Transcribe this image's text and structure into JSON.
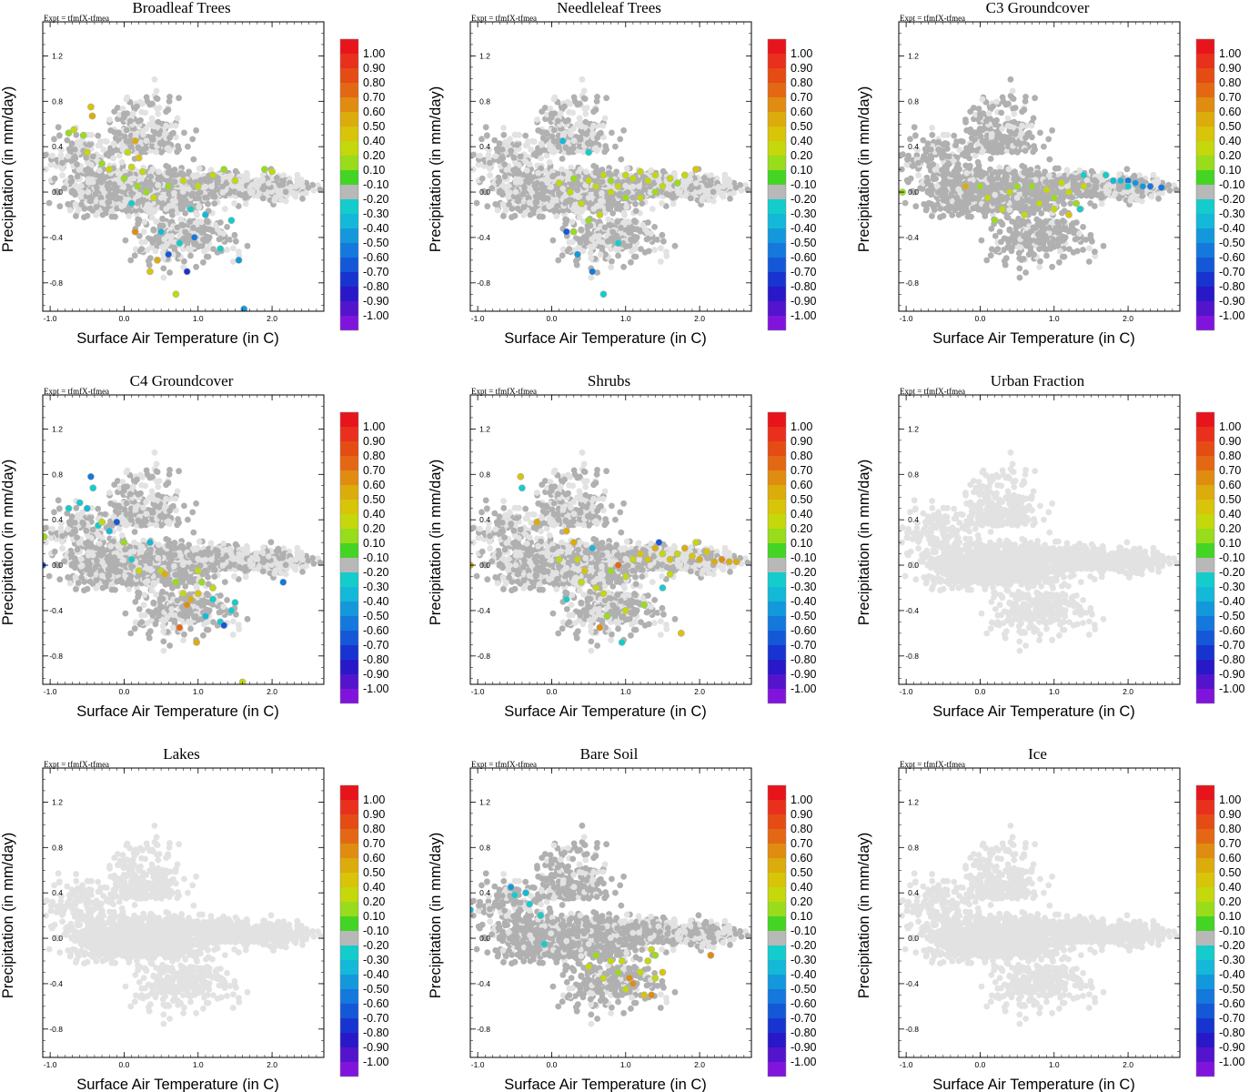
{
  "chart_data": {
    "type": "scatter",
    "experiment_label": "Expt = tfmfX-tfmea",
    "xlabel": "Surface Air Temperature (in C)",
    "ylabel": "Precipitation (in mm/day)",
    "xlim": [
      -1.1,
      2.7
    ],
    "ylim": [
      -1.05,
      1.5
    ],
    "xticks": [
      "-1.0",
      "0.0",
      "1.0",
      "2.0"
    ],
    "xtick_values": [
      -1.0,
      0.0,
      1.0,
      2.0
    ],
    "yticks": [
      "1.2",
      "0.8",
      "0.4",
      "0.0",
      "-0.4",
      "-0.8"
    ],
    "ytick_values": [
      1.2,
      0.8,
      0.4,
      0.0,
      -0.4,
      -0.8
    ],
    "colorbar": {
      "labels": [
        "1.00",
        "0.90",
        "0.80",
        "0.70",
        "0.60",
        "0.50",
        "0.40",
        "0.20",
        "0.10",
        "-0.10",
        "-0.20",
        "-0.30",
        "-0.40",
        "-0.50",
        "-0.60",
        "-0.70",
        "-0.80",
        "-0.90",
        "-1.00"
      ],
      "colors": [
        "#e8141c",
        "#e8301c",
        "#e44c14",
        "#e46814",
        "#e08c10",
        "#dcac0c",
        "#d8c408",
        "#c4d80c",
        "#98dc1c",
        "#44d424",
        "#b8b8b8",
        "#14cccc",
        "#14b8d8",
        "#1498dc",
        "#1478dc",
        "#1458d8",
        "#1834d0",
        "#2818c8",
        "#5414cc",
        "#8014dc"
      ]
    },
    "colors": {
      "background_points": "#e2e2e2",
      "neutral_points": "#b0b0b0"
    },
    "series": [
      {
        "name": "Broadleaf Trees",
        "neutral_density": 0.55,
        "colored": [
          [
            -0.75,
            0.52,
            0.15
          ],
          [
            -0.68,
            0.55,
            0.25
          ],
          [
            -0.55,
            0.5,
            0.12
          ],
          [
            -0.5,
            0.35,
            0.2
          ],
          [
            -0.45,
            0.75,
            0.45
          ],
          [
            -0.43,
            0.67,
            0.55
          ],
          [
            -0.3,
            0.25,
            0.15
          ],
          [
            -0.2,
            0.2,
            0.25
          ],
          [
            0.0,
            0.12,
            0.15
          ],
          [
            0.05,
            0.35,
            0.2
          ],
          [
            0.1,
            0.22,
            0.3
          ],
          [
            0.15,
            0.45,
            0.55
          ],
          [
            0.18,
            0.05,
            0.15
          ],
          [
            0.25,
            0.18,
            0.2
          ],
          [
            0.3,
            0.0,
            0.1
          ],
          [
            0.4,
            -0.05,
            0.2
          ],
          [
            0.6,
            0.05,
            0.15
          ],
          [
            0.8,
            0.1,
            0.2
          ],
          [
            1.0,
            0.05,
            0.3
          ],
          [
            1.2,
            0.15,
            0.2
          ],
          [
            1.35,
            0.2,
            0.15
          ],
          [
            1.5,
            0.1,
            0.25
          ],
          [
            1.9,
            0.2,
            0.15
          ],
          [
            2.0,
            0.18,
            0.35
          ],
          [
            0.9,
            -0.15,
            -0.3
          ],
          [
            1.1,
            -0.2,
            -0.4
          ],
          [
            0.95,
            -0.4,
            -0.6
          ],
          [
            1.3,
            -0.5,
            -0.3
          ],
          [
            1.55,
            -0.6,
            -0.5
          ],
          [
            1.62,
            -1.03,
            -0.45
          ],
          [
            0.5,
            -0.35,
            -0.35
          ],
          [
            0.6,
            -0.55,
            -0.7
          ],
          [
            0.75,
            -0.45,
            -0.25
          ],
          [
            0.45,
            -0.6,
            0.55
          ],
          [
            0.7,
            -0.9,
            0.3
          ],
          [
            0.15,
            -0.35,
            0.6
          ],
          [
            0.35,
            -0.7,
            0.4
          ],
          [
            0.85,
            -0.7,
            -0.75
          ],
          [
            0.2,
            0.3,
            0.45
          ],
          [
            1.45,
            -0.25,
            -0.3
          ],
          [
            0.1,
            -0.1,
            -0.3
          ]
        ]
      },
      {
        "name": "Needleleaf Trees",
        "neutral_density": 0.55,
        "colored": [
          [
            0.1,
            0.08,
            0.2
          ],
          [
            0.3,
            0.12,
            0.15
          ],
          [
            0.5,
            0.1,
            0.3
          ],
          [
            0.6,
            0.05,
            0.2
          ],
          [
            0.7,
            0.15,
            0.25
          ],
          [
            0.8,
            0.1,
            0.15
          ],
          [
            0.9,
            0.05,
            0.3
          ],
          [
            1.0,
            0.15,
            0.2
          ],
          [
            1.1,
            0.12,
            0.3
          ],
          [
            1.2,
            0.18,
            0.25
          ],
          [
            1.3,
            0.1,
            0.35
          ],
          [
            1.4,
            0.15,
            0.2
          ],
          [
            1.5,
            0.05,
            0.3
          ],
          [
            1.6,
            0.12,
            0.25
          ],
          [
            1.7,
            0.08,
            0.15
          ],
          [
            1.8,
            0.15,
            0.3
          ],
          [
            1.95,
            0.2,
            0.4
          ],
          [
            1.0,
            -0.05,
            0.15
          ],
          [
            0.4,
            -0.1,
            0.2
          ],
          [
            0.5,
            -0.25,
            0.15
          ],
          [
            0.65,
            -0.2,
            0.25
          ],
          [
            0.3,
            -0.35,
            0.15
          ],
          [
            0.2,
            -0.35,
            -0.65
          ],
          [
            0.35,
            -0.55,
            -0.5
          ],
          [
            0.55,
            -0.7,
            -0.6
          ],
          [
            0.7,
            -0.9,
            -0.25
          ],
          [
            0.9,
            -0.45,
            -0.3
          ],
          [
            0.15,
            0.45,
            -0.4
          ],
          [
            0.5,
            0.35,
            -0.25
          ],
          [
            1.2,
            -0.05,
            0.25
          ],
          [
            0.8,
            0.0,
            0.2
          ],
          [
            1.4,
            0.0,
            0.15
          ],
          [
            0.25,
            0.0,
            0.3
          ]
        ]
      },
      {
        "name": "C3 Groundcover",
        "neutral_density": 0.8,
        "colored": [
          [
            -1.05,
            0.0,
            0.15
          ],
          [
            -0.2,
            0.05,
            0.5
          ],
          [
            0.0,
            0.05,
            0.15
          ],
          [
            0.1,
            -0.05,
            0.2
          ],
          [
            0.2,
            -0.25,
            0.15
          ],
          [
            0.3,
            -0.15,
            0.2
          ],
          [
            0.4,
            0.0,
            0.25
          ],
          [
            0.5,
            0.05,
            0.15
          ],
          [
            0.6,
            -0.2,
            0.2
          ],
          [
            0.7,
            0.05,
            0.15
          ],
          [
            0.8,
            -0.1,
            0.3
          ],
          [
            0.9,
            0.02,
            0.2
          ],
          [
            1.0,
            -0.05,
            0.15
          ],
          [
            1.1,
            0.08,
            0.2
          ],
          [
            1.2,
            0.0,
            0.25
          ],
          [
            1.3,
            -0.1,
            0.15
          ],
          [
            1.4,
            0.05,
            0.2
          ],
          [
            1.0,
            -0.15,
            0.3
          ],
          [
            1.2,
            -0.2,
            0.45
          ],
          [
            1.35,
            -0.15,
            -0.3
          ],
          [
            1.4,
            0.15,
            -0.25
          ],
          [
            1.7,
            0.15,
            -0.3
          ],
          [
            1.9,
            0.1,
            -0.4
          ],
          [
            2.0,
            0.1,
            -0.6
          ],
          [
            2.1,
            0.08,
            -0.5
          ],
          [
            2.2,
            0.05,
            -0.45
          ],
          [
            2.3,
            0.05,
            -0.6
          ],
          [
            2.45,
            0.04,
            -0.55
          ],
          [
            2.0,
            0.05,
            -0.3
          ],
          [
            1.8,
            0.1,
            -0.35
          ]
        ]
      },
      {
        "name": "C4 Groundcover",
        "neutral_density": 0.6,
        "colored": [
          [
            -1.08,
            0.25,
            0.15
          ],
          [
            -1.1,
            0.0,
            -0.7
          ],
          [
            -0.75,
            0.5,
            -0.25
          ],
          [
            -0.6,
            0.55,
            -0.3
          ],
          [
            -0.5,
            0.5,
            -0.4
          ],
          [
            -0.45,
            0.78,
            -0.6
          ],
          [
            -0.42,
            0.68,
            -0.25
          ],
          [
            -0.35,
            0.35,
            -0.3
          ],
          [
            -0.3,
            0.38,
            0.2
          ],
          [
            -0.2,
            0.3,
            -0.35
          ],
          [
            -0.1,
            0.38,
            -0.65
          ],
          [
            0.0,
            0.2,
            0.15
          ],
          [
            0.1,
            0.05,
            -0.3
          ],
          [
            0.2,
            -0.05,
            0.2
          ],
          [
            0.35,
            0.2,
            -0.4
          ],
          [
            0.5,
            -0.05,
            0.3
          ],
          [
            0.55,
            -0.08,
            0.55
          ],
          [
            0.7,
            -0.15,
            0.15
          ],
          [
            0.8,
            -0.25,
            0.25
          ],
          [
            0.9,
            -0.3,
            0.5
          ],
          [
            1.0,
            -0.25,
            0.4
          ],
          [
            0.75,
            -0.55,
            0.75
          ],
          [
            0.98,
            -0.68,
            0.5
          ],
          [
            1.05,
            -0.15,
            0.15
          ],
          [
            1.1,
            -0.45,
            -0.35
          ],
          [
            1.2,
            -0.2,
            0.2
          ],
          [
            1.3,
            -0.5,
            -0.3
          ],
          [
            1.35,
            -0.53,
            -0.65
          ],
          [
            1.45,
            -0.4,
            -0.3
          ],
          [
            1.5,
            -0.33,
            -0.25
          ],
          [
            1.6,
            -1.03,
            0.2
          ],
          [
            2.15,
            -0.15,
            -0.55
          ],
          [
            1.0,
            -0.05,
            0.2
          ],
          [
            0.85,
            -0.35,
            0.6
          ],
          [
            1.2,
            -0.3,
            -0.25
          ]
        ]
      },
      {
        "name": "Shrubs",
        "neutral_density": 0.55,
        "colored": [
          [
            -1.1,
            0.0,
            0.55
          ],
          [
            -0.42,
            0.78,
            0.45
          ],
          [
            -0.4,
            0.68,
            -0.3
          ],
          [
            -0.2,
            0.38,
            0.55
          ],
          [
            0.1,
            0.05,
            0.3
          ],
          [
            0.2,
            0.3,
            0.55
          ],
          [
            0.3,
            0.2,
            0.5
          ],
          [
            0.35,
            0.05,
            0.2
          ],
          [
            0.45,
            -0.05,
            0.4
          ],
          [
            0.55,
            0.15,
            -0.4
          ],
          [
            0.6,
            -0.2,
            0.2
          ],
          [
            0.7,
            -0.25,
            0.3
          ],
          [
            0.8,
            -0.05,
            0.15
          ],
          [
            0.9,
            0.0,
            0.7
          ],
          [
            1.0,
            -0.1,
            0.25
          ],
          [
            1.1,
            0.05,
            0.3
          ],
          [
            1.2,
            0.1,
            0.4
          ],
          [
            1.3,
            0.05,
            0.45
          ],
          [
            1.4,
            0.15,
            0.5
          ],
          [
            1.5,
            0.1,
            0.35
          ],
          [
            1.6,
            0.05,
            0.45
          ],
          [
            1.7,
            0.1,
            0.3
          ],
          [
            1.8,
            0.15,
            0.55
          ],
          [
            1.9,
            0.08,
            0.45
          ],
          [
            2.0,
            0.05,
            0.5
          ],
          [
            2.1,
            0.12,
            0.4
          ],
          [
            2.2,
            0.03,
            0.55
          ],
          [
            2.3,
            0.05,
            0.6
          ],
          [
            2.4,
            0.03,
            0.5
          ],
          [
            2.5,
            0.03,
            0.55
          ],
          [
            1.6,
            -0.08,
            0.3
          ],
          [
            1.5,
            -0.2,
            -0.3
          ],
          [
            1.25,
            -0.35,
            0.15
          ],
          [
            1.0,
            -0.4,
            0.25
          ],
          [
            0.75,
            -0.45,
            0.15
          ],
          [
            0.65,
            -0.55,
            0.6
          ],
          [
            0.95,
            -0.68,
            -0.25
          ],
          [
            1.75,
            -0.6,
            0.4
          ],
          [
            1.45,
            0.2,
            -0.65
          ],
          [
            1.95,
            0.2,
            0.2
          ],
          [
            0.2,
            -0.3,
            -0.25
          ],
          [
            0.4,
            -0.15,
            0.25
          ]
        ]
      },
      {
        "name": "Urban Fraction",
        "neutral_density": 0.0,
        "colored": []
      },
      {
        "name": "Lakes",
        "neutral_density": 0.0,
        "colored": []
      },
      {
        "name": "Bare Soil",
        "neutral_density": 0.75,
        "colored": [
          [
            -1.1,
            0.25,
            -0.4
          ],
          [
            -0.55,
            0.45,
            -0.5
          ],
          [
            -0.5,
            0.38,
            -0.3
          ],
          [
            -0.35,
            0.4,
            -0.35
          ],
          [
            -0.3,
            0.3,
            -0.3
          ],
          [
            -0.15,
            0.2,
            -0.25
          ],
          [
            -0.1,
            -0.05,
            -0.25
          ],
          [
            0.5,
            -0.25,
            0.2
          ],
          [
            0.6,
            -0.15,
            0.15
          ],
          [
            0.7,
            -0.35,
            0.2
          ],
          [
            0.8,
            -0.2,
            0.25
          ],
          [
            0.9,
            -0.3,
            0.15
          ],
          [
            1.0,
            -0.45,
            0.3
          ],
          [
            1.05,
            -0.35,
            0.6
          ],
          [
            1.1,
            -0.4,
            0.65
          ],
          [
            1.2,
            -0.3,
            0.3
          ],
          [
            1.25,
            -0.5,
            0.4
          ],
          [
            1.3,
            -0.2,
            0.25
          ],
          [
            1.35,
            -0.5,
            0.6
          ],
          [
            1.4,
            -0.35,
            0.2
          ],
          [
            1.5,
            -0.3,
            0.45
          ],
          [
            1.4,
            -0.15,
            0.15
          ],
          [
            1.35,
            -0.1,
            0.3
          ],
          [
            2.15,
            -0.15,
            0.6
          ],
          [
            0.95,
            -0.2,
            0.2
          ]
        ]
      },
      {
        "name": "Ice",
        "neutral_density": 0.0,
        "colored": []
      }
    ]
  }
}
